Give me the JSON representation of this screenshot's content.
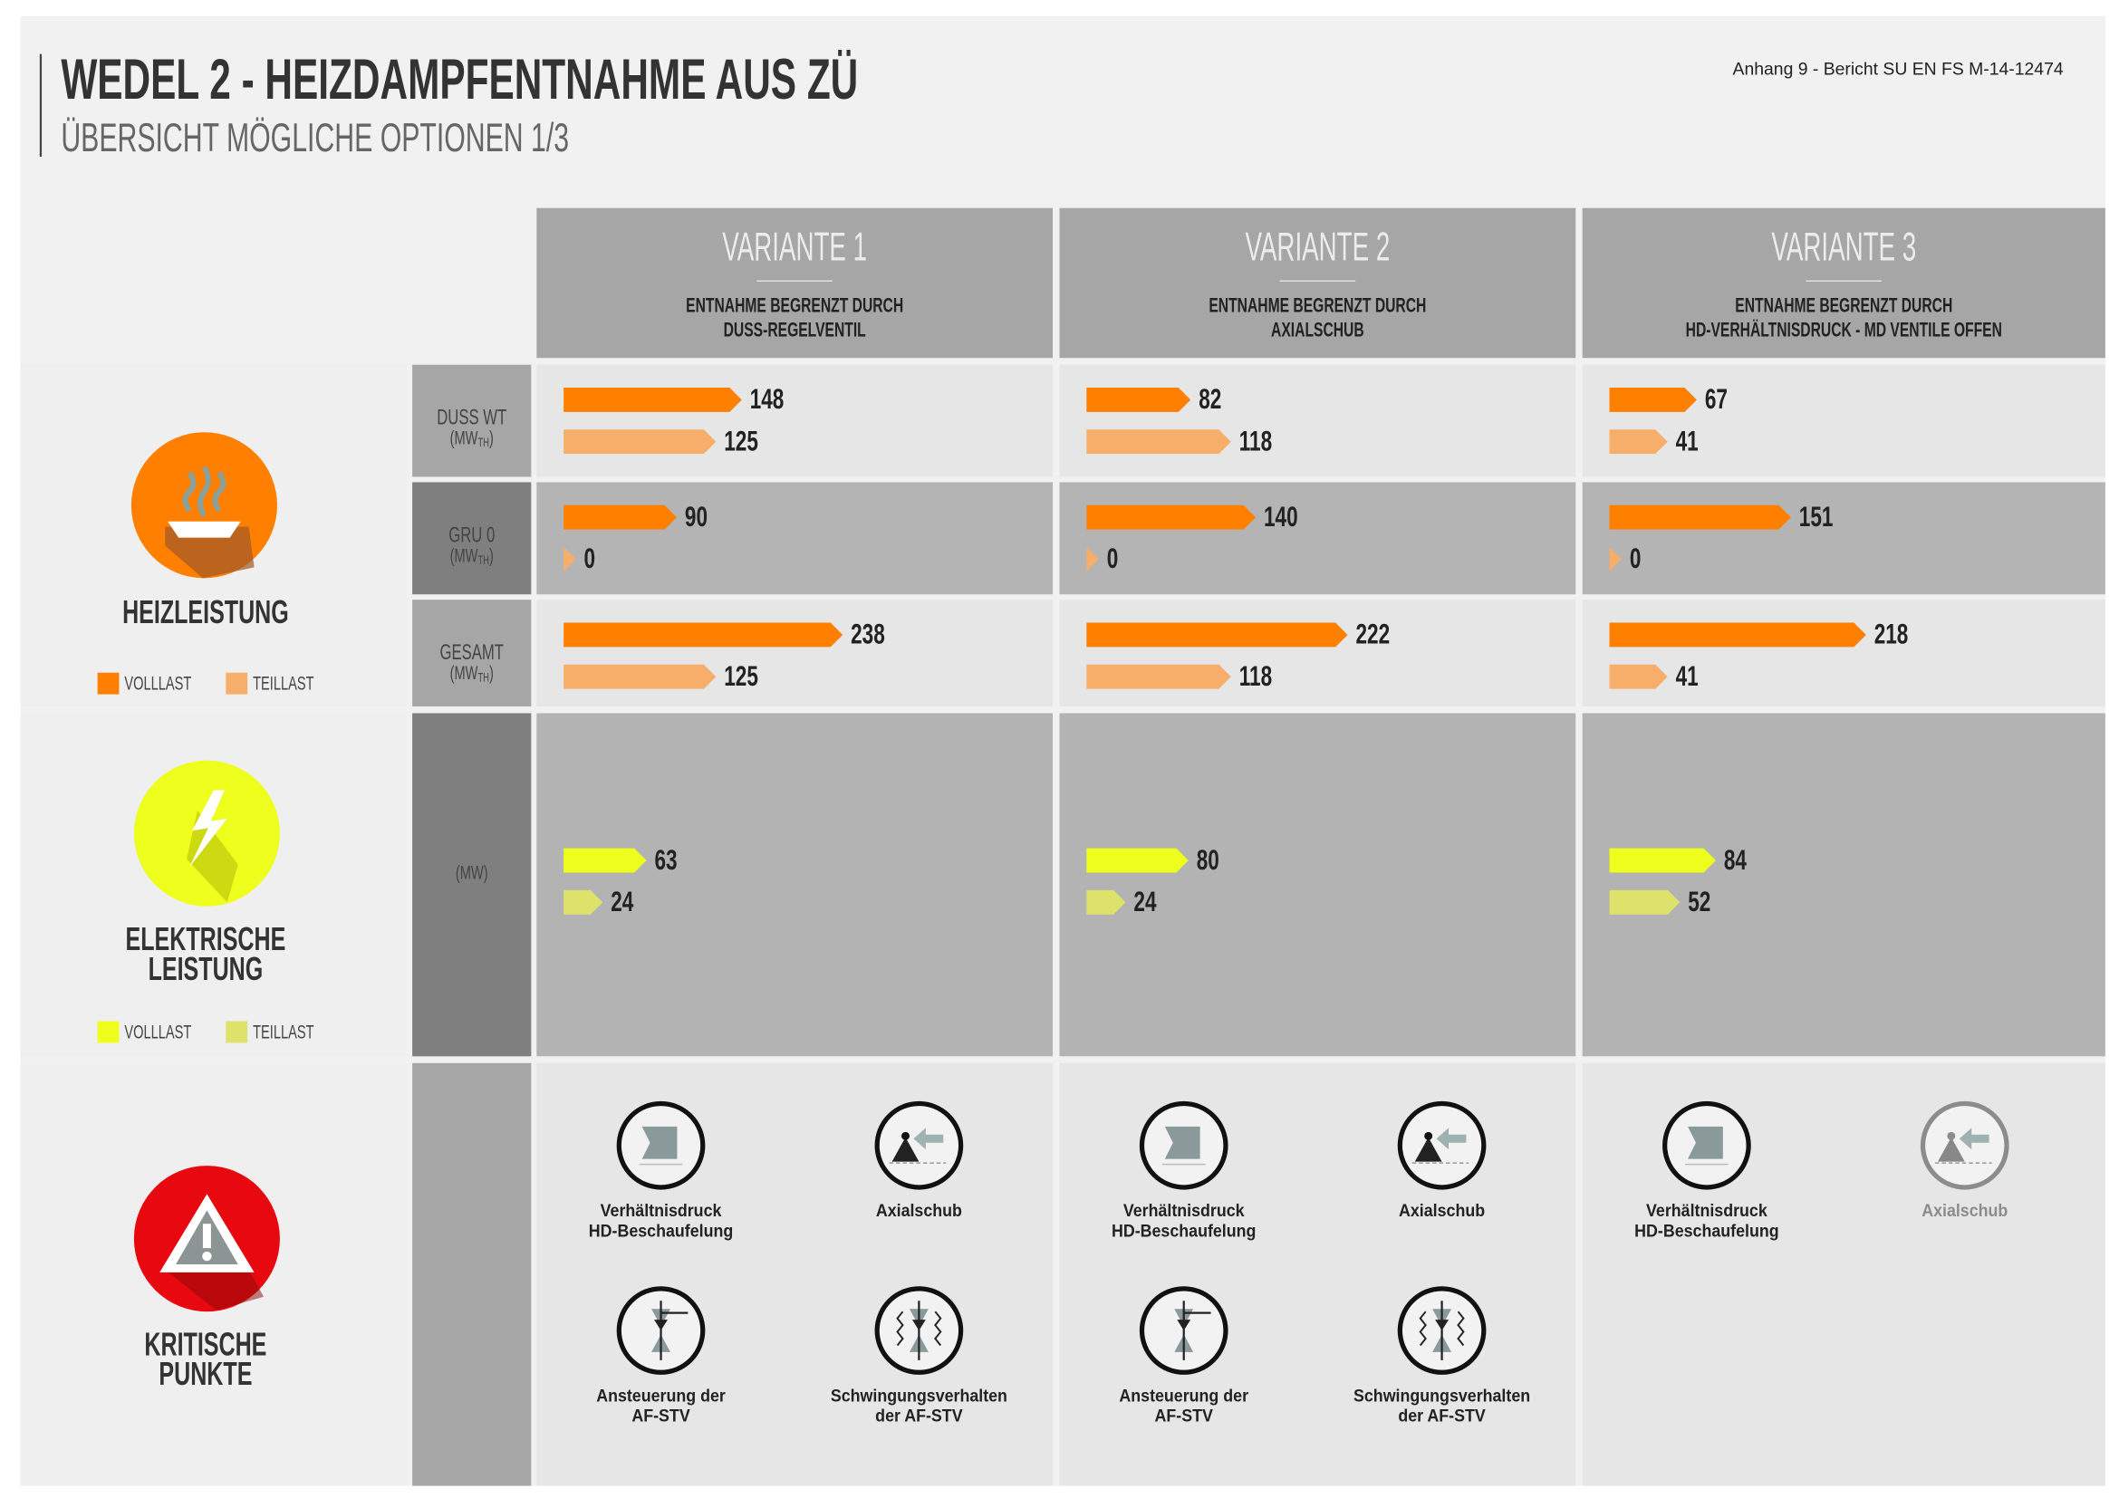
{
  "header": {
    "title": "WEDEL 2 - HEIZDAMPFENTNAHME AUS ZÜ",
    "subtitle": "ÜBERSICHT MÖGLICHE OPTIONEN 1/3",
    "reference": "Anhang 9 - Bericht SU EN FS M-14-12474"
  },
  "variants": [
    {
      "title": "VARIANTE 1",
      "subtitle": [
        "ENTNAHME BEGRENZT DURCH",
        "DUSS-REGELVENTIL"
      ]
    },
    {
      "title": "VARIANTE 2",
      "subtitle": [
        "ENTNAHME BEGRENZT DURCH",
        "AXIALSCHUB"
      ]
    },
    {
      "title": "VARIANTE 3",
      "subtitle": [
        "ENTNAHME BEGRENZT DURCH",
        "HD-VERHÄLTNISDRUCK - MD VENTILE OFFEN"
      ]
    }
  ],
  "heat": {
    "label": [
      "HEIZLEISTUNG"
    ],
    "legend": [
      "VOLLLAST",
      "TEILLAST"
    ],
    "colors": [
      "#ff7f00",
      "#f7ae6b"
    ],
    "rows": [
      {
        "name": "DUSS WT",
        "unit": [
          "(MW",
          "TH",
          ")"
        ],
        "values": [
          [
            148,
            125
          ],
          [
            82,
            118
          ],
          [
            67,
            41
          ]
        ]
      },
      {
        "name": "GRU 0",
        "unit": [
          "(MW",
          "TH",
          ")"
        ],
        "values": [
          [
            90,
            0
          ],
          [
            140,
            0
          ],
          [
            151,
            0
          ]
        ]
      },
      {
        "name": "GESAMT",
        "unit": [
          "(MW",
          "TH",
          ")"
        ],
        "values": [
          [
            238,
            125
          ],
          [
            222,
            118
          ],
          [
            218,
            41
          ]
        ]
      }
    ]
  },
  "electric": {
    "label": [
      "ELEKTRISCHE",
      "LEISTUNG"
    ],
    "legend": [
      "VOLLLAST",
      "TEILLAST"
    ],
    "colors": [
      "#eeff1d",
      "#dde26a"
    ],
    "unit": "(MW)",
    "values": [
      [
        63,
        24
      ],
      [
        80,
        24
      ],
      [
        84,
        52
      ]
    ]
  },
  "critical": {
    "label": [
      "KRITISCHE",
      "PUNKTE"
    ],
    "items": [
      [
        {
          "label": [
            "Verhältnisdruck",
            "HD-Beschaufelung"
          ],
          "active": true
        },
        {
          "label": [
            "Axialschub"
          ],
          "active": true
        },
        {
          "label": [
            "Ansteuerung der",
            "AF-STV"
          ],
          "active": true
        },
        {
          "label": [
            "Schwingungsverhalten",
            "der AF-STV"
          ],
          "active": true
        }
      ],
      [
        {
          "label": [
            "Verhältnisdruck",
            "HD-Beschaufelung"
          ],
          "active": true
        },
        {
          "label": [
            "Axialschub"
          ],
          "active": true
        },
        {
          "label": [
            "Ansteuerung der",
            "AF-STV"
          ],
          "active": true
        },
        {
          "label": [
            "Schwingungsverhalten",
            "der AF-STV"
          ],
          "active": true
        }
      ],
      [
        {
          "label": [
            "Verhältnisdruck",
            "HD-Beschaufelung"
          ],
          "active": true
        },
        {
          "label": [
            "Axialschub"
          ],
          "active": false
        }
      ]
    ]
  }
}
